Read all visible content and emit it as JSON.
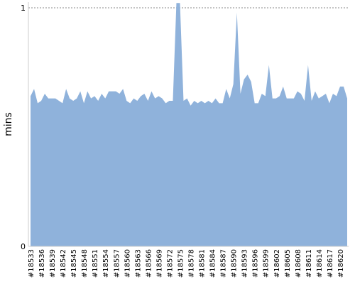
{
  "chart_data": {
    "type": "area",
    "y_label": "mins",
    "color": "#8fb2db",
    "categories": [
      "#18533",
      null,
      null,
      "#18536",
      null,
      null,
      "#18539",
      null,
      null,
      "#18542",
      null,
      null,
      "#18545",
      null,
      null,
      "#18548",
      null,
      null,
      "#18551",
      null,
      null,
      "#18554",
      null,
      null,
      "#18557",
      null,
      null,
      "#18560",
      null,
      null,
      "#18563",
      null,
      null,
      "#18566",
      null,
      null,
      "#18569",
      null,
      null,
      "#18572",
      null,
      null,
      "#18575",
      null,
      null,
      "#18578",
      null,
      null,
      "#18581",
      null,
      null,
      "#18584",
      null,
      null,
      "#18587",
      null,
      null,
      "#18590",
      null,
      null,
      "#18593",
      null,
      null,
      "#18596",
      null,
      null,
      "#18599",
      null,
      null,
      "#18602",
      null,
      null,
      "#18605",
      null,
      null,
      "#18608",
      null,
      null,
      "#18611",
      null,
      null,
      "#18614",
      null,
      null,
      "#18617",
      null,
      null,
      "#18620",
      null,
      null
    ],
    "values": [
      0.63,
      0.66,
      0.6,
      0.61,
      0.64,
      0.62,
      0.62,
      0.62,
      0.61,
      0.6,
      0.66,
      0.62,
      0.61,
      0.62,
      0.65,
      0.6,
      0.65,
      0.62,
      0.63,
      0.61,
      0.64,
      0.62,
      0.65,
      0.65,
      0.65,
      0.64,
      0.66,
      0.61,
      0.6,
      0.62,
      0.61,
      0.63,
      0.64,
      0.61,
      0.65,
      0.62,
      0.63,
      0.62,
      0.6,
      0.61,
      0.61,
      1.02,
      1.02,
      0.61,
      0.62,
      0.59,
      0.61,
      0.6,
      0.61,
      0.6,
      0.61,
      0.6,
      0.62,
      0.6,
      0.6,
      0.66,
      0.62,
      0.68,
      0.98,
      0.64,
      0.7,
      0.72,
      0.69,
      0.6,
      0.6,
      0.64,
      0.63,
      0.76,
      0.62,
      0.62,
      0.63,
      0.67,
      0.62,
      0.62,
      0.62,
      0.65,
      0.64,
      0.61,
      0.76,
      0.61,
      0.65,
      0.62,
      0.63,
      0.64,
      0.6,
      0.64,
      0.63,
      0.67,
      0.67,
      0.62
    ],
    "ylim": [
      0,
      1
    ],
    "yticks": [
      0,
      1
    ],
    "grid": true
  }
}
